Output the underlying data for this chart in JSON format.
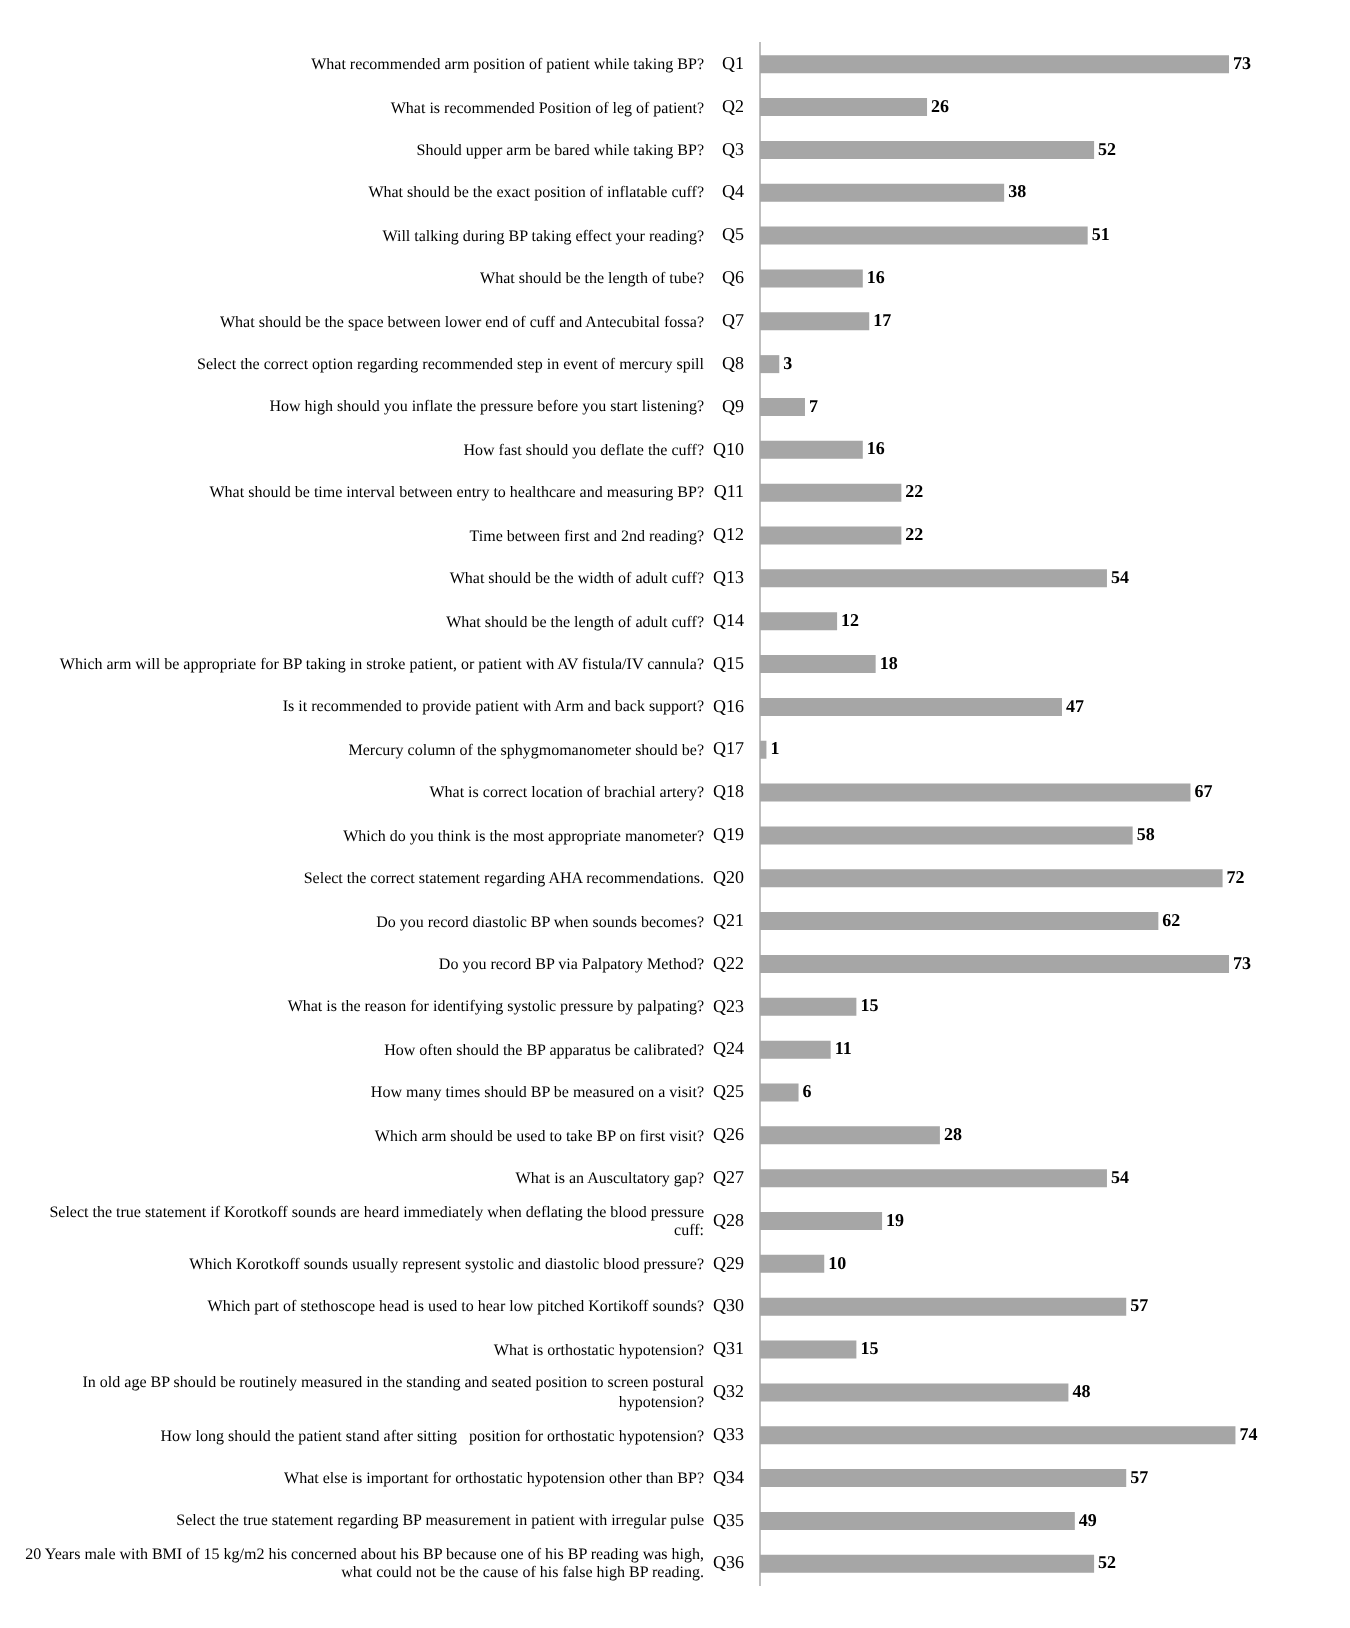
{
  "chart_data": {
    "type": "bar",
    "orientation": "horizontal",
    "color": "#a6a6a6",
    "data_labels": true,
    "grid": false,
    "legend": false,
    "tick_labels": "y",
    "categories": [
      "Q1",
      "Q2",
      "Q3",
      "Q4",
      "Q5",
      "Q6",
      "Q7",
      "Q8",
      "Q9",
      "Q10",
      "Q11",
      "Q12",
      "Q13",
      "Q14",
      "Q15",
      "Q16",
      "Q17",
      "Q18",
      "Q19",
      "Q20",
      "Q21",
      "Q22",
      "Q23",
      "Q24",
      "Q25",
      "Q26",
      "Q27",
      "Q28",
      "Q29",
      "Q30",
      "Q31",
      "Q32",
      "Q33",
      "Q34",
      "Q35",
      "Q36"
    ],
    "values": [
      73,
      26,
      52,
      38,
      51,
      16,
      17,
      3,
      7,
      16,
      22,
      22,
      54,
      12,
      18,
      47,
      1,
      67,
      58,
      72,
      62,
      73,
      15,
      11,
      6,
      28,
      54,
      19,
      10,
      57,
      15,
      48,
      74,
      57,
      49,
      52
    ],
    "annotations": [
      "What recommended arm position of patient while taking BP?",
      "What is recommended Position of leg of patient?",
      "Should upper arm be bared while taking BP?",
      "What should be the exact position of inflatable cuff?",
      "Will talking during BP taking effect your reading?",
      "What should be the length of tube?",
      "What should be the space between lower end of cuff and Antecubital fossa?",
      "Select the correct option regarding recommended step in event of mercury spill",
      "How high should you inflate the pressure before you start listening?",
      "How fast should you deflate the cuff?",
      "What should be time interval between entry to healthcare and measuring BP?",
      "Time between first and 2nd reading?",
      "What should be the width of adult cuff?",
      "What should be the length of adult cuff?",
      "Which arm will be appropriate for BP taking in stroke patient, or patient with AV fistula/IV cannula?",
      "Is it recommended to provide patient with Arm and back support?",
      "Mercury column of the sphygmomanometer should be?",
      "What is correct location of brachial artery?",
      "Which do you think is the most appropriate manometer?",
      "Select the correct statement regarding AHA recommendations.",
      "Do you record diastolic BP when sounds becomes?",
      "Do you record BP via Palpatory Method?",
      "What is the reason for identifying systolic pressure by palpating?",
      "How often should the BP apparatus be calibrated?",
      "How many times should BP be measured on a visit?",
      "Which arm should be used to take BP on first visit?",
      "What is an Auscultatory gap?",
      "Select the true statement if Korotkoff sounds are heard immediately when deflating the blood pressure cuff:",
      "Which Korotkoff sounds usually represent systolic and diastolic blood pressure?",
      "Which part of stethoscope head is used to hear low pitched Kortikoff sounds?",
      "What is orthostatic hypotension?",
      "In old age BP should be routinely measured in the standing and seated position to screen postural hypotension?",
      "How long should the patient stand after sitting   position for orthostatic hypotension?",
      "What else is important for orthostatic hypotension other than BP?",
      "Select the true statement regarding BP measurement in patient with irregular pulse",
      "20 Years male with BMI of 15 kg/m2 his concerned about his BP because one of his BP reading was high, what could not be the cause of his false high BP reading."
    ]
  }
}
